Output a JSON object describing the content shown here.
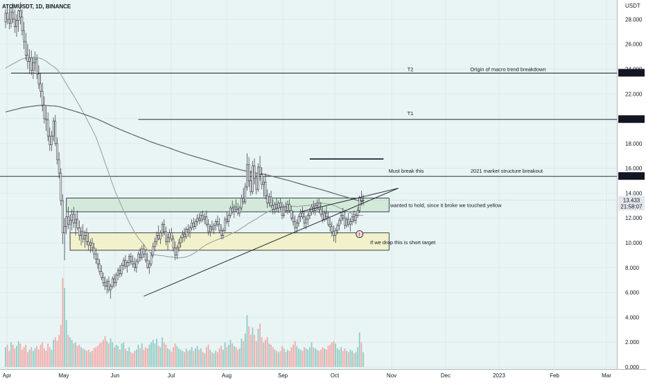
{
  "chart_data": {
    "type": "candlestick",
    "symbol_title": "ATOMUSDT, 1D, BINANCE",
    "currency_label": "USDT",
    "colors": {
      "background": "#e9f4f5",
      "up": "#26a69a",
      "down": "#ef5350",
      "ma_fast": "#9aa39e",
      "ma_slow": "#5d6360",
      "level_line": "#131722",
      "green_zone": "#cfe8d6",
      "yellow_zone": "#f2f1c4"
    },
    "y_axis": {
      "min": 0,
      "max": 29,
      "ticks": [
        "0.000",
        "2.000",
        "4.000",
        "6.000",
        "8.000",
        "10.000",
        "12.000",
        "14.000",
        "16.000",
        "18.000",
        "20.000",
        "22.000",
        "24.000",
        "26.000",
        "28.000"
      ]
    },
    "x_axis": {
      "labels": [
        "Apr",
        "May",
        "Jun",
        "Jul",
        "Aug",
        "Sep",
        "Oct",
        "Nov",
        "Dec",
        "2023",
        "Feb",
        "Mar"
      ]
    },
    "price_badges": [
      {
        "label": "23.671",
        "value": 23.671
      },
      {
        "label": "19.937",
        "value": 19.937
      },
      {
        "label": "15.354",
        "value": 15.354
      }
    ],
    "current_price": {
      "label": "13.433",
      "countdown": "21:58:07",
      "value": 13.433
    },
    "horizontal_levels": [
      {
        "value": 23.671,
        "from_day": 3,
        "tag": "T2",
        "note": "Origin of macro trend breakdown"
      },
      {
        "value": 19.937,
        "from_day": 72,
        "tag": "T1",
        "note": ""
      },
      {
        "value": 15.354,
        "from_day": -10,
        "tag": "Must break this",
        "note": "2021 market structure breakout"
      },
      {
        "value": 16.75,
        "from_day": 165,
        "to_day": 205,
        "tag": "",
        "note": ""
      }
    ],
    "zones": [
      {
        "name": "green",
        "top": 13.6,
        "bottom": 12.5,
        "from_day": 33,
        "to_day": 208,
        "note": "wanted to hold, since it broke we touched yellow"
      },
      {
        "name": "yellow",
        "top": 10.8,
        "bottom": 9.4,
        "from_day": 35,
        "to_day": 208,
        "note": "If we drop this is short target"
      }
    ],
    "trendlines": [
      {
        "x1": 75,
        "y1": 5.7,
        "x2": 213,
        "y2": 14.4
      },
      {
        "x1": 160,
        "y1": 12.5,
        "x2": 213,
        "y2": 14.4
      }
    ],
    "marker": {
      "day": 192,
      "value": 10.7,
      "label": "!"
    },
    "candles": [
      [
        27.8,
        28.8,
        27.3,
        28.5,
        1.6
      ],
      [
        28.5,
        29.2,
        27.6,
        28.0,
        1.8
      ],
      [
        28.0,
        28.9,
        27.2,
        27.7,
        1.3
      ],
      [
        27.7,
        29.0,
        27.3,
        28.6,
        2.0
      ],
      [
        28.6,
        29.3,
        27.7,
        28.0,
        1.8
      ],
      [
        28.0,
        28.8,
        26.9,
        27.4,
        1.5
      ],
      [
        27.4,
        28.4,
        26.6,
        27.9,
        1.7
      ],
      [
        27.9,
        28.8,
        27.0,
        28.7,
        2.1
      ],
      [
        28.7,
        29.4,
        27.6,
        28.2,
        1.9
      ],
      [
        28.2,
        28.8,
        26.7,
        27.1,
        1.4
      ],
      [
        27.1,
        27.8,
        25.6,
        26.2,
        1.6
      ],
      [
        26.2,
        26.9,
        24.7,
        25.1,
        1.8
      ],
      [
        25.1,
        26.0,
        24.0,
        24.6,
        1.2
      ],
      [
        24.6,
        25.6,
        23.6,
        24.9,
        1.4
      ],
      [
        24.9,
        25.5,
        23.5,
        23.9,
        1.6
      ],
      [
        23.9,
        25.0,
        23.2,
        24.5,
        1.3
      ],
      [
        24.5,
        25.4,
        23.8,
        24.8,
        1.5
      ],
      [
        24.8,
        25.2,
        23.2,
        23.6,
        1.7
      ],
      [
        23.6,
        24.3,
        22.4,
        22.8,
        1.4
      ],
      [
        22.8,
        23.7,
        21.7,
        22.2,
        1.8
      ],
      [
        22.2,
        22.9,
        20.6,
        21.1,
        2.0
      ],
      [
        21.1,
        21.8,
        19.6,
        20.0,
        1.5
      ],
      [
        20.0,
        21.0,
        19.0,
        19.9,
        1.3
      ],
      [
        19.9,
        20.5,
        18.2,
        18.6,
        1.9
      ],
      [
        18.6,
        19.3,
        17.4,
        17.9,
        1.6
      ],
      [
        17.9,
        19.0,
        17.4,
        18.6,
        1.4
      ],
      [
        18.6,
        20.1,
        18.2,
        19.8,
        2.2
      ],
      [
        19.8,
        20.3,
        17.8,
        18.0,
        2.4
      ],
      [
        18.0,
        18.5,
        16.3,
        16.7,
        2.1
      ],
      [
        16.7,
        17.3,
        15.2,
        15.6,
        2.6
      ],
      [
        15.6,
        16.0,
        13.0,
        13.4,
        3.4
      ],
      [
        13.4,
        13.9,
        9.9,
        10.8,
        7.2
      ],
      [
        10.8,
        12.0,
        8.6,
        11.3,
        6.4
      ],
      [
        11.3,
        12.8,
        10.7,
        12.1,
        3.8
      ],
      [
        12.1,
        12.9,
        11.1,
        11.5,
        2.6
      ],
      [
        11.5,
        12.3,
        10.4,
        11.8,
        2.4
      ],
      [
        11.8,
        12.7,
        11.0,
        12.3,
        2.2
      ],
      [
        12.3,
        12.9,
        11.2,
        11.6,
        1.9
      ],
      [
        11.6,
        12.4,
        10.6,
        11.9,
        2.0
      ],
      [
        11.9,
        12.6,
        11.0,
        11.2,
        1.7
      ],
      [
        11.2,
        11.8,
        10.2,
        10.6,
        1.8
      ],
      [
        10.6,
        11.3,
        9.8,
        10.9,
        1.6
      ],
      [
        10.9,
        11.5,
        10.0,
        10.3,
        1.5
      ],
      [
        10.3,
        11.0,
        9.6,
        10.6,
        1.4
      ],
      [
        10.6,
        11.2,
        9.8,
        10.1,
        1.3
      ],
      [
        10.1,
        10.8,
        9.4,
        9.8,
        1.4
      ],
      [
        9.8,
        10.3,
        9.2,
        10.0,
        1.2
      ],
      [
        10.0,
        10.4,
        9.3,
        9.6,
        1.3
      ],
      [
        9.6,
        10.0,
        8.7,
        9.1,
        1.5
      ],
      [
        9.1,
        9.6,
        8.3,
        8.7,
        1.6
      ],
      [
        8.7,
        9.2,
        7.9,
        8.3,
        1.7
      ],
      [
        8.3,
        8.7,
        7.4,
        7.7,
        1.9
      ],
      [
        7.7,
        8.2,
        7.0,
        7.2,
        2.0
      ],
      [
        7.2,
        7.6,
        6.5,
        6.8,
        2.2
      ],
      [
        6.8,
        7.3,
        6.2,
        6.5,
        2.5
      ],
      [
        6.5,
        7.1,
        5.9,
        6.9,
        2.1
      ],
      [
        6.9,
        7.3,
        6.0,
        6.2,
        1.9
      ],
      [
        6.2,
        6.7,
        5.5,
        6.5,
        2.3
      ],
      [
        6.5,
        7.3,
        6.3,
        7.1,
        2.0
      ],
      [
        7.1,
        7.5,
        6.4,
        6.8,
        1.6
      ],
      [
        6.8,
        7.6,
        6.5,
        7.4,
        1.8
      ],
      [
        7.4,
        8.0,
        7.0,
        7.8,
        1.7
      ],
      [
        7.8,
        8.2,
        7.2,
        7.5,
        1.4
      ],
      [
        7.5,
        8.4,
        7.3,
        8.2,
        1.9
      ],
      [
        8.2,
        8.8,
        7.8,
        8.6,
        2.0
      ],
      [
        8.6,
        9.0,
        7.9,
        8.1,
        1.5
      ],
      [
        8.1,
        8.6,
        7.6,
        8.4,
        1.3
      ],
      [
        8.4,
        9.1,
        8.1,
        8.9,
        1.6
      ],
      [
        8.9,
        9.2,
        8.2,
        8.5,
        1.2
      ],
      [
        8.5,
        9.0,
        8.0,
        8.3,
        1.1
      ],
      [
        8.3,
        8.8,
        7.7,
        8.0,
        1.3
      ],
      [
        8.0,
        8.7,
        7.6,
        8.5,
        1.4
      ],
      [
        8.5,
        9.3,
        8.3,
        9.1,
        1.8
      ],
      [
        9.1,
        9.6,
        8.5,
        8.8,
        1.5
      ],
      [
        8.8,
        9.8,
        8.6,
        9.5,
        1.9
      ],
      [
        9.5,
        9.9,
        8.8,
        9.1,
        1.4
      ],
      [
        9.1,
        9.5,
        8.4,
        8.6,
        1.6
      ],
      [
        8.6,
        9.2,
        7.9,
        8.0,
        1.5
      ],
      [
        8.0,
        8.6,
        7.5,
        8.3,
        1.8
      ],
      [
        8.3,
        9.3,
        8.1,
        9.0,
        2.0
      ],
      [
        9.0,
        10.0,
        8.8,
        9.7,
        2.2
      ],
      [
        9.7,
        10.4,
        9.3,
        10.1,
        1.9
      ],
      [
        10.1,
        10.9,
        9.8,
        10.6,
        2.3
      ],
      [
        10.6,
        11.4,
        10.2,
        10.3,
        1.7
      ],
      [
        10.3,
        11.0,
        9.9,
        10.8,
        1.6
      ],
      [
        10.8,
        11.7,
        10.5,
        11.5,
        2.4
      ],
      [
        11.5,
        11.9,
        10.6,
        10.9,
        2.0
      ],
      [
        10.9,
        11.3,
        9.8,
        10.1,
        1.8
      ],
      [
        10.1,
        10.7,
        9.4,
        10.4,
        1.5
      ],
      [
        10.4,
        11.1,
        10.0,
        10.8,
        1.4
      ],
      [
        10.8,
        11.2,
        10.1,
        10.3,
        1.2
      ],
      [
        10.3,
        10.6,
        9.3,
        9.6,
        1.6
      ],
      [
        9.6,
        10.1,
        8.6,
        9.0,
        1.9
      ],
      [
        9.0,
        9.8,
        8.7,
        9.6,
        1.7
      ],
      [
        9.6,
        10.3,
        9.3,
        10.0,
        1.5
      ],
      [
        10.0,
        10.6,
        9.6,
        10.4,
        1.4
      ],
      [
        10.4,
        11.0,
        10.0,
        10.7,
        1.3
      ],
      [
        10.7,
        11.2,
        10.1,
        10.5,
        1.2
      ],
      [
        10.5,
        11.3,
        10.3,
        11.1,
        1.5
      ],
      [
        11.1,
        11.5,
        10.5,
        10.8,
        1.3
      ],
      [
        10.8,
        11.4,
        10.4,
        11.2,
        1.4
      ],
      [
        11.2,
        11.9,
        11.0,
        11.6,
        1.6
      ],
      [
        11.6,
        12.0,
        11.0,
        11.3,
        1.3
      ],
      [
        11.3,
        11.9,
        11.1,
        11.7,
        1.5
      ],
      [
        11.7,
        12.3,
        11.4,
        12.0,
        1.7
      ],
      [
        12.0,
        12.4,
        11.5,
        11.8,
        1.4
      ],
      [
        11.8,
        12.5,
        11.6,
        12.2,
        1.5
      ],
      [
        12.2,
        12.6,
        11.7,
        11.9,
        1.2
      ],
      [
        11.9,
        12.4,
        11.5,
        12.1,
        1.1
      ],
      [
        12.1,
        12.6,
        11.3,
        11.5,
        1.6
      ],
      [
        11.5,
        11.9,
        10.6,
        10.9,
        1.8
      ],
      [
        10.9,
        11.5,
        10.5,
        11.3,
        1.4
      ],
      [
        11.3,
        11.8,
        10.9,
        11.1,
        1.2
      ],
      [
        11.1,
        11.6,
        10.7,
        11.4,
        1.1
      ],
      [
        11.4,
        11.9,
        11.0,
        11.7,
        1.3
      ],
      [
        11.7,
        12.2,
        11.3,
        11.5,
        1.2
      ],
      [
        11.5,
        12.0,
        10.8,
        11.0,
        1.5
      ],
      [
        11.0,
        11.5,
        10.3,
        10.6,
        1.7
      ],
      [
        10.6,
        11.2,
        10.3,
        11.0,
        1.4
      ],
      [
        11.0,
        12.1,
        10.9,
        11.9,
        2.0
      ],
      [
        11.9,
        12.5,
        11.5,
        11.7,
        1.6
      ],
      [
        11.7,
        12.4,
        11.3,
        12.2,
        1.8
      ],
      [
        12.2,
        13.0,
        12.0,
        12.8,
        2.2
      ],
      [
        12.8,
        13.4,
        12.3,
        12.5,
        1.9
      ],
      [
        12.5,
        13.1,
        12.0,
        12.9,
        1.7
      ],
      [
        12.9,
        13.5,
        12.5,
        12.7,
        1.6
      ],
      [
        12.7,
        13.2,
        12.2,
        12.4,
        1.4
      ],
      [
        12.4,
        13.0,
        12.1,
        12.8,
        1.5
      ],
      [
        12.8,
        13.9,
        12.6,
        13.6,
        2.3
      ],
      [
        13.6,
        14.4,
        13.1,
        13.3,
        2.1
      ],
      [
        13.3,
        14.8,
        13.1,
        14.5,
        2.7
      ],
      [
        14.5,
        17.2,
        14.2,
        16.3,
        4.2
      ],
      [
        16.3,
        16.9,
        14.5,
        15.0,
        3.3
      ],
      [
        15.0,
        15.8,
        13.8,
        14.1,
        2.6
      ],
      [
        14.1,
        16.6,
        13.9,
        16.2,
        3.2
      ],
      [
        16.2,
        16.8,
        14.7,
        15.2,
        2.6
      ],
      [
        15.2,
        15.6,
        13.9,
        14.3,
        2.1
      ],
      [
        14.3,
        16.4,
        14.1,
        16.1,
        3.1
      ],
      [
        16.1,
        17.0,
        15.0,
        15.5,
        3.5
      ],
      [
        15.5,
        16.1,
        14.3,
        14.7,
        2.4
      ],
      [
        14.7,
        15.3,
        13.7,
        14.9,
        2.0
      ],
      [
        14.9,
        15.6,
        13.5,
        13.8,
        2.2
      ],
      [
        13.8,
        14.3,
        12.8,
        13.2,
        2.4
      ],
      [
        13.2,
        14.0,
        12.9,
        13.7,
        1.9
      ],
      [
        13.7,
        14.2,
        12.8,
        13.0,
        1.8
      ],
      [
        13.0,
        13.5,
        12.3,
        12.7,
        1.6
      ],
      [
        12.7,
        13.3,
        12.3,
        13.1,
        1.4
      ],
      [
        13.1,
        13.6,
        12.5,
        12.8,
        1.3
      ],
      [
        12.8,
        13.4,
        12.4,
        13.2,
        1.2
      ],
      [
        13.2,
        13.6,
        12.6,
        12.9,
        1.3
      ],
      [
        12.9,
        13.3,
        11.9,
        12.2,
        1.7
      ],
      [
        12.2,
        13.1,
        12.0,
        12.9,
        1.5
      ],
      [
        12.9,
        13.3,
        12.4,
        12.6,
        1.2
      ],
      [
        12.6,
        13.4,
        12.3,
        13.1,
        1.4
      ],
      [
        13.1,
        13.5,
        12.4,
        12.6,
        1.3
      ],
      [
        12.6,
        13.0,
        11.8,
        12.0,
        1.6
      ],
      [
        12.0,
        12.6,
        11.4,
        11.7,
        1.8
      ],
      [
        11.7,
        12.2,
        10.9,
        11.2,
        2.1
      ],
      [
        11.2,
        11.9,
        10.8,
        11.6,
        1.7
      ],
      [
        11.6,
        12.3,
        11.3,
        12.1,
        1.5
      ],
      [
        12.1,
        12.7,
        11.7,
        12.4,
        1.4
      ],
      [
        12.4,
        12.9,
        11.9,
        12.1,
        1.3
      ],
      [
        12.1,
        12.5,
        11.2,
        11.6,
        1.6
      ],
      [
        11.6,
        12.2,
        11.1,
        11.9,
        1.5
      ],
      [
        11.9,
        12.4,
        11.4,
        12.2,
        1.4
      ],
      [
        12.2,
        12.8,
        11.9,
        12.5,
        1.6
      ],
      [
        12.5,
        13.1,
        12.2,
        12.9,
        2.0
      ],
      [
        12.9,
        13.4,
        12.3,
        12.6,
        1.6
      ],
      [
        12.6,
        13.2,
        12.2,
        13.0,
        1.5
      ],
      [
        13.0,
        13.5,
        12.6,
        13.2,
        1.4
      ],
      [
        13.2,
        13.6,
        12.4,
        12.7,
        1.3
      ],
      [
        12.7,
        13.3,
        12.1,
        12.3,
        1.4
      ],
      [
        12.3,
        12.9,
        11.6,
        11.9,
        1.6
      ],
      [
        11.9,
        12.6,
        11.7,
        12.4,
        1.5
      ],
      [
        12.4,
        13.0,
        11.8,
        12.1,
        1.4
      ],
      [
        12.1,
        12.5,
        11.3,
        11.5,
        1.7
      ],
      [
        11.5,
        12.0,
        10.9,
        11.3,
        1.8
      ],
      [
        11.3,
        11.7,
        10.5,
        10.9,
        2.0
      ],
      [
        10.9,
        11.4,
        10.1,
        10.6,
        2.1
      ],
      [
        10.6,
        11.2,
        10.0,
        11.0,
        1.9
      ],
      [
        11.0,
        11.6,
        10.7,
        11.4,
        1.5
      ],
      [
        11.4,
        12.0,
        11.0,
        11.8,
        1.4
      ],
      [
        11.8,
        12.5,
        11.5,
        12.2,
        1.6
      ],
      [
        12.2,
        12.8,
        11.8,
        12.0,
        1.3
      ],
      [
        12.0,
        12.5,
        11.1,
        11.4,
        1.5
      ],
      [
        11.4,
        12.1,
        11.2,
        11.9,
        1.3
      ],
      [
        11.9,
        12.4,
        11.3,
        11.5,
        1.2
      ],
      [
        11.5,
        12.0,
        10.9,
        11.7,
        1.4
      ],
      [
        11.7,
        12.3,
        11.4,
        12.1,
        1.3
      ],
      [
        12.1,
        12.6,
        11.6,
        11.8,
        1.1
      ],
      [
        11.8,
        12.4,
        11.5,
        12.2,
        1.2
      ],
      [
        12.2,
        12.9,
        12.0,
        12.6,
        1.6
      ],
      [
        12.6,
        13.8,
        12.4,
        13.6,
        2.8
      ],
      [
        13.6,
        14.2,
        13.0,
        13.4,
        2.0
      ],
      [
        13.4,
        13.9,
        13.0,
        13.433,
        1.2
      ]
    ]
  }
}
